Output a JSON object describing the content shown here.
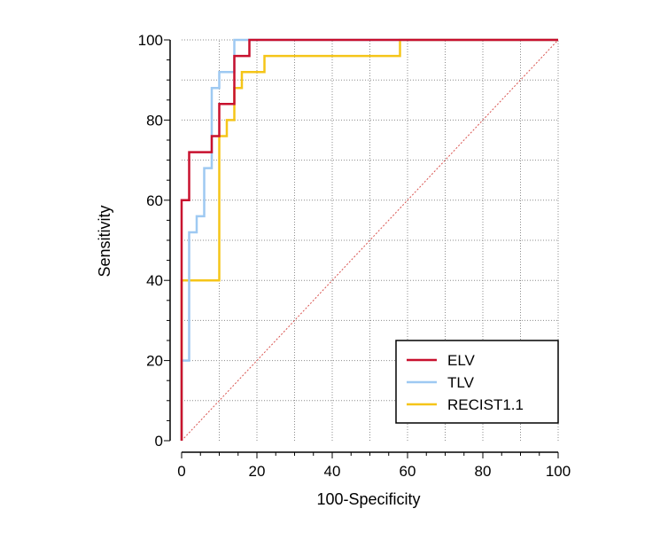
{
  "chart_data": {
    "type": "line",
    "title": "",
    "xlabel": "100-Specificity",
    "ylabel": "Sensitivity",
    "xlim": [
      0,
      100
    ],
    "ylim": [
      0,
      100
    ],
    "xticks": [
      0,
      20,
      40,
      60,
      80,
      100
    ],
    "yticks": [
      0,
      20,
      40,
      60,
      80,
      100
    ],
    "grid": true,
    "legend_position": "bottom-right",
    "reference_line": {
      "name": "diagonal",
      "color": "#d9534f",
      "points": [
        [
          0,
          0
        ],
        [
          100,
          100
        ]
      ]
    },
    "series": [
      {
        "name": "RECIST1.1",
        "color": "#f5c518",
        "points": [
          [
            0,
            0
          ],
          [
            0,
            40
          ],
          [
            10,
            40
          ],
          [
            10,
            76
          ],
          [
            12,
            76
          ],
          [
            12,
            80
          ],
          [
            14,
            80
          ],
          [
            14,
            88
          ],
          [
            16,
            88
          ],
          [
            16,
            92
          ],
          [
            22,
            92
          ],
          [
            22,
            96
          ],
          [
            58,
            96
          ],
          [
            58,
            100
          ],
          [
            100,
            100
          ]
        ]
      },
      {
        "name": "TLV",
        "color": "#9ec9f2",
        "points": [
          [
            0,
            0
          ],
          [
            0,
            20
          ],
          [
            2,
            20
          ],
          [
            2,
            36
          ],
          [
            2,
            36
          ],
          [
            2,
            52
          ],
          [
            4,
            52
          ],
          [
            4,
            56
          ],
          [
            6,
            56
          ],
          [
            6,
            68
          ],
          [
            8,
            68
          ],
          [
            8,
            88
          ],
          [
            10,
            88
          ],
          [
            10,
            92
          ],
          [
            14,
            92
          ],
          [
            14,
            100
          ],
          [
            100,
            100
          ]
        ]
      },
      {
        "name": "ELV",
        "color": "#c8102e",
        "points": [
          [
            0,
            0
          ],
          [
            0,
            60
          ],
          [
            2,
            60
          ],
          [
            2,
            72
          ],
          [
            8,
            72
          ],
          [
            8,
            76
          ],
          [
            10,
            76
          ],
          [
            10,
            84
          ],
          [
            14,
            84
          ],
          [
            14,
            96
          ],
          [
            18,
            96
          ],
          [
            18,
            100
          ],
          [
            100,
            100
          ]
        ]
      }
    ],
    "legend": [
      {
        "label": "ELV",
        "color": "#c8102e"
      },
      {
        "label": "TLV",
        "color": "#9ec9f2"
      },
      {
        "label": "RECIST1.1",
        "color": "#f5c518"
      }
    ]
  }
}
